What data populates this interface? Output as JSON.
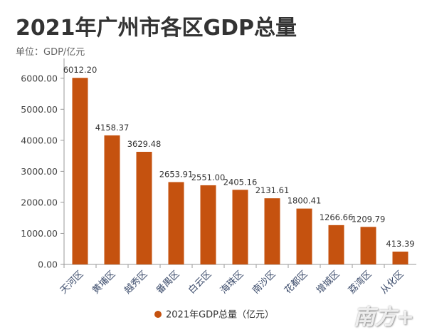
{
  "header": {
    "title": "2021年广州市各区GDP总量",
    "unit": "单位：GDP/亿元"
  },
  "colors": {
    "bar": "#c5520f",
    "axis": "#999999",
    "text": "#333333",
    "tick_text": "#444444",
    "x_label_text": "#3a4a6a"
  },
  "watermark": "南方+",
  "chart_data": {
    "type": "bar",
    "categories": [
      "天河区",
      "黄埔区",
      "越秀区",
      "番禺区",
      "白云区",
      "海珠区",
      "南沙区",
      "花都区",
      "增城区",
      "荔湾区",
      "从化区"
    ],
    "series": [
      {
        "name": "2021年GDP总量（亿元）",
        "values": [
          6012.2,
          4158.37,
          3629.48,
          2653.91,
          2551.0,
          2405.16,
          2131.61,
          1800.41,
          1266.66,
          1209.79,
          413.39
        ]
      }
    ],
    "data_labels": [
      "6012.20",
      "4158.37",
      "3629.48",
      "2653.91",
      "2551.00",
      "2405.16",
      "2131.61",
      "1800.41",
      "1266.66",
      "1209.79",
      "413.39"
    ],
    "y_ticks": [
      "0.00",
      "1000.00",
      "2000.00",
      "3000.00",
      "4000.00",
      "5000.00",
      "6000.00"
    ],
    "ylim": [
      0,
      6500
    ],
    "legend_position": "bottom-center",
    "grid": false
  }
}
